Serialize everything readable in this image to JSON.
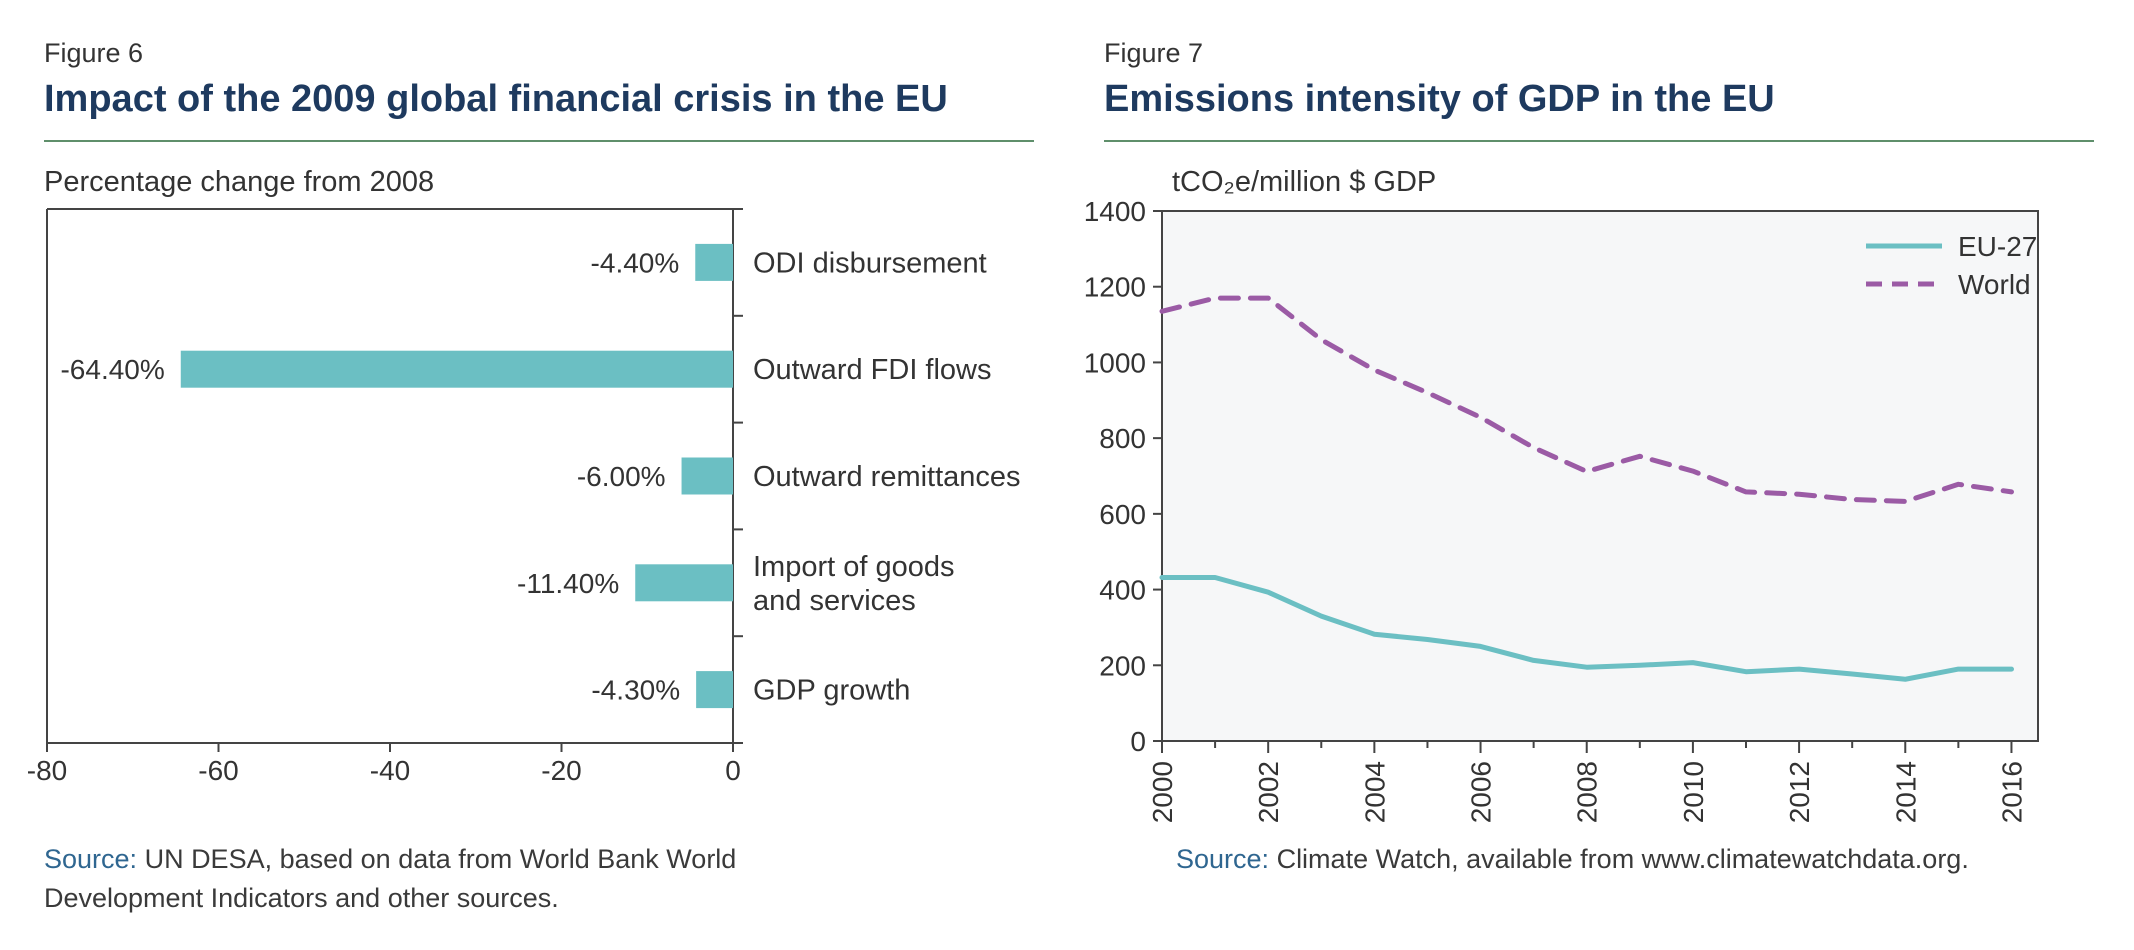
{
  "figures": [
    {
      "label": "Figure 6",
      "title": "Impact of the 2009 global financial crisis in the EU",
      "subtitle": "Percentage change from 2008",
      "source_key": "Source:",
      "source_text": " UN DESA, based on data from World Bank World Development Indicators and other sources."
    },
    {
      "label": "Figure 7",
      "title": "Emissions intensity of GDP in the EU",
      "subtitle": "tCO₂e/million $ GDP",
      "source_key": "Source:",
      "source_text": " Climate Watch, available from www.climatewatchdata.org."
    }
  ],
  "colors": {
    "teal": "#6bbfc3",
    "purple": "#9b5ba5",
    "title": "#1e3a5f",
    "rule": "#5f8f6b",
    "plot_bg": "#f6f7f8"
  },
  "chart_data": [
    {
      "type": "bar",
      "orientation": "horizontal",
      "categories": [
        "ODI disbursement",
        "Outward FDI flows",
        "Outward remittances",
        "Import of goods and services",
        "GDP growth"
      ],
      "category_lines": [
        [
          "ODI disbursement"
        ],
        [
          "Outward FDI flows"
        ],
        [
          "Outward remittances"
        ],
        [
          "Import of goods",
          "and services"
        ],
        [
          "GDP growth"
        ]
      ],
      "values": [
        -4.4,
        -64.4,
        -6.0,
        -11.4,
        -4.3
      ],
      "data_labels": [
        "-4.40%",
        "-64.40%",
        "-6.00%",
        "-11.40%",
        "-4.30%"
      ],
      "xlim": [
        -80,
        0
      ],
      "xticks": [
        -80,
        -60,
        -40,
        -20,
        0
      ],
      "xtick_labels": [
        "-80",
        "-60",
        "-40",
        "-20",
        "0"
      ],
      "ylabel": "Percentage change from 2008",
      "grid": false,
      "color": "#6bbfc3"
    },
    {
      "type": "line",
      "x": [
        2000,
        2001,
        2002,
        2003,
        2004,
        2005,
        2006,
        2007,
        2008,
        2009,
        2010,
        2011,
        2012,
        2013,
        2014,
        2015,
        2016
      ],
      "series": [
        {
          "name": "EU-27",
          "color": "#6bbfc3",
          "dash": "solid",
          "values": [
            432,
            432,
            393,
            330,
            282,
            268,
            250,
            213,
            195,
            200,
            207,
            183,
            190,
            177,
            163,
            190,
            190
          ]
        },
        {
          "name": "World",
          "color": "#9b5ba5",
          "dash": "dashed",
          "values": [
            1135,
            1170,
            1170,
            1060,
            980,
            920,
            855,
            775,
            712,
            752,
            713,
            658,
            652,
            638,
            633,
            678,
            658
          ]
        }
      ],
      "ylim": [
        0,
        1400
      ],
      "yticks": [
        0,
        200,
        400,
        600,
        800,
        1000,
        1200,
        1400
      ],
      "xticks": [
        2000,
        2002,
        2004,
        2006,
        2008,
        2010,
        2012,
        2014,
        2016
      ],
      "ylabel": "tCO₂e/million $ GDP",
      "legend": "top-right",
      "grid": false
    }
  ]
}
